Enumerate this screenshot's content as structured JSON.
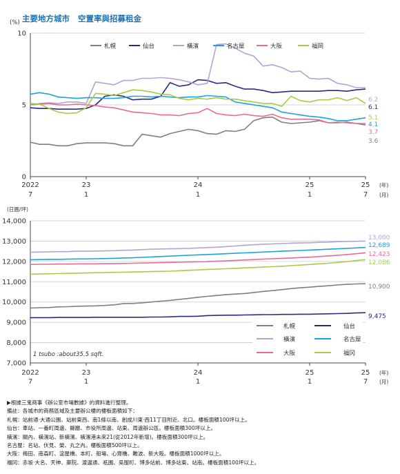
{
  "header": {
    "title_part1": "主要地方城市",
    "gap": "   ",
    "title_part2": "空置率與招募租金"
  },
  "chart_data": [
    {
      "type": "line",
      "unit_label": "(%)",
      "ylim": [
        0,
        10
      ],
      "yticks": [
        0,
        5,
        10
      ],
      "xlim": [
        0,
        36
      ],
      "x_ticks": [
        {
          "x": 0,
          "year": "2022",
          "month": "7"
        },
        {
          "x": 6,
          "year": "23",
          "month": "1"
        },
        {
          "x": 18,
          "year": "24",
          "month": "1"
        },
        {
          "x": 30,
          "year": "25",
          "month": "1"
        },
        {
          "x": 36,
          "year": "25",
          "month": "7"
        }
      ],
      "x_unit_year": "(年)",
      "x_unit_month": "(月)",
      "legend": [
        "札幌",
        "仙台",
        "橫濱",
        "名古屋",
        "大阪",
        "福岡"
      ],
      "series": [
        {
          "name": "札幌",
          "color": "#7f7f7f",
          "end_label": "3.6",
          "values": [
            2.4,
            2.25,
            2.25,
            2.15,
            2.15,
            2.3,
            2.35,
            2.35,
            2.35,
            2.3,
            2.15,
            2.15,
            2.95,
            2.85,
            2.75,
            3.0,
            3.15,
            3.3,
            3.2,
            3.0,
            2.95,
            3.2,
            3.15,
            3.3,
            3.9,
            4.1,
            4.15,
            3.8,
            3.7,
            3.75,
            3.8,
            3.9,
            3.75,
            3.75,
            3.8,
            3.7,
            3.6
          ]
        },
        {
          "name": "仙台",
          "color": "#262a82",
          "end_label": "6.1",
          "values": [
            4.8,
            4.75,
            4.75,
            4.7,
            4.7,
            4.7,
            4.75,
            5.0,
            5.6,
            5.7,
            5.6,
            5.35,
            5.4,
            5.4,
            5.6,
            6.55,
            6.3,
            6.4,
            6.75,
            6.7,
            6.5,
            6.55,
            6.3,
            6.1,
            6.1,
            6.0,
            5.85,
            5.9,
            5.95,
            5.95,
            5.95,
            5.95,
            6.0,
            6.0,
            5.95,
            6.05,
            6.1
          ]
        },
        {
          "name": "橫濱",
          "color": "#b7a0d2",
          "end_label": "6.2",
          "values": [
            5.0,
            5.1,
            5.15,
            5.1,
            5.2,
            5.2,
            5.1,
            6.6,
            6.5,
            6.4,
            6.7,
            6.7,
            6.85,
            6.85,
            6.9,
            6.85,
            6.75,
            6.6,
            6.4,
            6.5,
            9.2,
            9.25,
            8.95,
            8.6,
            8.4,
            7.7,
            7.8,
            7.6,
            7.3,
            7.35,
            6.85,
            6.8,
            6.85,
            6.5,
            6.4,
            6.2,
            6.2
          ]
        },
        {
          "name": "名古屋",
          "color": "#1aa3dc",
          "end_label": "4.1",
          "values": [
            5.75,
            5.85,
            5.75,
            5.55,
            5.5,
            5.45,
            5.5,
            5.5,
            5.45,
            5.45,
            5.5,
            5.6,
            5.6,
            5.55,
            5.6,
            5.55,
            5.5,
            5.55,
            5.55,
            5.65,
            5.6,
            5.55,
            5.2,
            5.1,
            5.0,
            4.9,
            4.8,
            4.5,
            4.4,
            4.3,
            4.2,
            4.15,
            4.05,
            3.9,
            3.9,
            4.0,
            4.1
          ]
        },
        {
          "name": "大阪",
          "color": "#e9699a",
          "end_label": "3.7",
          "values": [
            5.0,
            5.05,
            5.1,
            5.0,
            5.0,
            5.05,
            5.0,
            4.95,
            4.85,
            4.8,
            4.65,
            4.5,
            4.45,
            4.4,
            4.3,
            4.3,
            4.25,
            4.4,
            4.45,
            4.75,
            4.4,
            4.3,
            4.25,
            4.35,
            4.25,
            4.2,
            4.35,
            4.1,
            4.0,
            4.0,
            4.0,
            3.95,
            3.75,
            3.8,
            3.75,
            3.7,
            3.7
          ]
        },
        {
          "name": "福岡",
          "color": "#a6cb45",
          "end_label": "5.1",
          "values": [
            5.1,
            5.05,
            4.75,
            4.5,
            4.4,
            4.45,
            4.8,
            5.8,
            5.75,
            5.65,
            5.85,
            6.05,
            6.0,
            5.9,
            5.75,
            5.7,
            5.45,
            5.35,
            5.45,
            5.4,
            5.5,
            5.4,
            5.4,
            5.3,
            5.2,
            5.1,
            5.1,
            4.9,
            5.6,
            5.3,
            5.2,
            5.35,
            5.35,
            5.5,
            5.3,
            5.5,
            5.1
          ]
        }
      ]
    },
    {
      "type": "line",
      "unit_label": "(日圓/坪)",
      "ylim": [
        7000,
        14000
      ],
      "yticks": [
        7000,
        8000,
        9000,
        10000,
        11000,
        12000,
        13000,
        14000
      ],
      "ytick_labels": [
        "7,000",
        "8,000",
        "9,000",
        "10,000",
        "11,000",
        "12,000",
        "13,000",
        "14,000"
      ],
      "xlim": [
        0,
        36
      ],
      "x_ticks": [
        {
          "x": 0,
          "year": "2022",
          "month": "7"
        },
        {
          "x": 6,
          "year": "23",
          "month": "1"
        },
        {
          "x": 18,
          "year": "24",
          "month": "1"
        },
        {
          "x": 30,
          "year": "25",
          "month": "1"
        },
        {
          "x": 36,
          "year": "25",
          "month": "7"
        }
      ],
      "x_unit_year": "(年)",
      "x_unit_month": "(月)",
      "annotation": "1 tsubo :about35.5 sqft.",
      "legend": [
        "札幌",
        "仙台",
        "橫濱",
        "名古屋",
        "大阪",
        "福冈"
      ],
      "series": [
        {
          "name": "札幌",
          "color": "#7f7f7f",
          "end_label": "10,900",
          "values": [
            9700,
            9720,
            9730,
            9760,
            9770,
            9790,
            9800,
            9810,
            9830,
            9860,
            9920,
            9930,
            9960,
            10000,
            10040,
            10080,
            10130,
            10180,
            10230,
            10280,
            10320,
            10360,
            10390,
            10420,
            10470,
            10520,
            10560,
            10610,
            10660,
            10700,
            10730,
            10770,
            10800,
            10840,
            10870,
            10890,
            10900
          ]
        },
        {
          "name": "仙台",
          "color": "#262a82",
          "end_label": "9,475",
          "values": [
            9230,
            9230,
            9230,
            9240,
            9240,
            9240,
            9240,
            9250,
            9250,
            9250,
            9250,
            9250,
            9250,
            9260,
            9260,
            9270,
            9290,
            9290,
            9300,
            9330,
            9340,
            9350,
            9350,
            9360,
            9370,
            9380,
            9380,
            9390,
            9390,
            9400,
            9400,
            9410,
            9420,
            9430,
            9440,
            9460,
            9475
          ]
        },
        {
          "name": "橫濱",
          "color": "#b7a0d2",
          "end_label": "13,000",
          "values": [
            12450,
            12460,
            12470,
            12480,
            12480,
            12500,
            12500,
            12510,
            12520,
            12530,
            12550,
            12560,
            12580,
            12600,
            12610,
            12620,
            12630,
            12640,
            12660,
            12680,
            12700,
            12730,
            12760,
            12790,
            12820,
            12840,
            12860,
            12880,
            12900,
            12910,
            12920,
            12940,
            12950,
            12970,
            12980,
            12990,
            13000
          ]
        },
        {
          "name": "名古屋",
          "color": "#1aa3dc",
          "end_label": "12,689",
          "values": [
            12080,
            12090,
            12100,
            12100,
            12110,
            12120,
            12120,
            12130,
            12140,
            12150,
            12170,
            12180,
            12200,
            12220,
            12240,
            12260,
            12280,
            12300,
            12320,
            12340,
            12360,
            12380,
            12400,
            12420,
            12440,
            12460,
            12480,
            12500,
            12520,
            12540,
            12560,
            12580,
            12600,
            12620,
            12640,
            12665,
            12689
          ]
        },
        {
          "name": "大阪",
          "color": "#e9699a",
          "end_label": "12,423",
          "values": [
            11850,
            11860,
            11860,
            11870,
            11870,
            11880,
            11880,
            11880,
            11890,
            11890,
            11900,
            11910,
            11920,
            11930,
            11940,
            11950,
            11960,
            11970,
            11980,
            11990,
            12010,
            12030,
            12050,
            12070,
            12090,
            12110,
            12130,
            12150,
            12170,
            12190,
            12210,
            12240,
            12270,
            12300,
            12340,
            12380,
            12423
          ]
        },
        {
          "name": "福冈",
          "color": "#a6cb45",
          "end_label": "12,086",
          "values": [
            11370,
            11380,
            11390,
            11400,
            11410,
            11420,
            11430,
            11440,
            11450,
            11460,
            11470,
            11480,
            11490,
            11500,
            11510,
            11520,
            11540,
            11560,
            11580,
            11600,
            11620,
            11640,
            11660,
            11680,
            11700,
            11720,
            11740,
            11760,
            11790,
            11820,
            11850,
            11880,
            11910,
            11950,
            11990,
            12040,
            12086
          ]
        }
      ]
    }
  ],
  "notes": [
    "▶根據三鬼商事《辦公室市場數據》的資料進行整理。",
    "備註：各城市的商務區域及主要辦公樓的樓板面積如下：",
    "札幌：站前通·大通公園、站前東西、南1條以南、創成川東·西11丁目附近、北口。樓板面積100坪以上。",
    "仙台：車站、一番町周邊、縣廳、市役所周邊、站東、周邊辦公區。樓板面積300坪以上。",
    "橫濱：關內、橫濱站、新橫濱、橫濱港未來21(從2012年新增)。樓板面積300坪以上。",
    "名古屋：名站、伏見、榮、丸之內。樓板面積500坪以上。",
    "大阪：梅田、南森町、淀屋橋、本町、船場、心齋橋、難波、新大阪。樓板面積1000坪以上。",
    "福冈：赤坂·大名、天神、薬院、渡邊通、祇園、吳服町、博多站前、博多站東、站南。樓板面積100坪以上。"
  ]
}
